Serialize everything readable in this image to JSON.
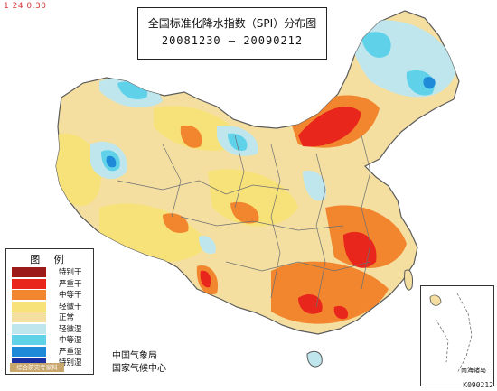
{
  "corner_tag": "1 24  0.30",
  "stamp": "K090212",
  "title": "全国标准化降水指数（SPI）分布图",
  "period": "20081230 — 20090212",
  "colors": {
    "very_dry": "#9b1b1b",
    "heavy_dry": "#e8261c",
    "moderate_dry": "#f2862e",
    "light_dry": "#f7e27a",
    "normal": "#f4dfa1",
    "light_wet": "#bfe6ec",
    "moderate_wet": "#5fd2ea",
    "heavy_wet": "#1f8ad8",
    "very_wet": "#1b2fa3",
    "sea": "#ffffff",
    "boundary": "#5b5b5b"
  },
  "legend": {
    "title": "图 例",
    "items": [
      {
        "label": "特别干",
        "color": "#9b1b1b"
      },
      {
        "label": "严重干",
        "color": "#e8261c"
      },
      {
        "label": "中等干",
        "color": "#f2862e"
      },
      {
        "label": "轻微干",
        "color": "#f7e27a"
      },
      {
        "label": "正常",
        "color": "#f4dfa1"
      },
      {
        "label": "轻微湿",
        "color": "#bfe6ec"
      },
      {
        "label": "中等湿",
        "color": "#5fd2ea"
      },
      {
        "label": "严重湿",
        "color": "#1f8ad8"
      },
      {
        "label": "特别湿",
        "color": "#1b2fa3"
      }
    ],
    "footer": "综合防灾专家科"
  },
  "credits": {
    "line1": "中国气象局",
    "line2": "国家气候中心"
  },
  "inset": {
    "label": "南海诸岛"
  }
}
